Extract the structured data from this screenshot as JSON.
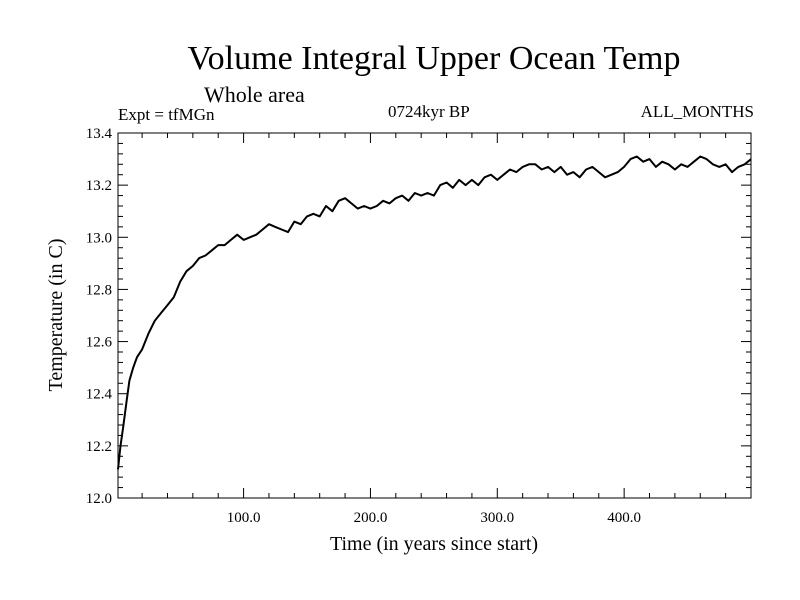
{
  "chart_data": {
    "type": "line",
    "title": "Volume Integral Upper Ocean Temp",
    "subtitle": "Whole area",
    "left_label": "Expt = tfMGn",
    "center_label": "0724kyr BP",
    "right_label": "ALL_MONTHS",
    "xlabel": "Time (in years since start)",
    "ylabel": "Temperature (in C)",
    "xlim": [
      1,
      500
    ],
    "ylim": [
      12.0,
      13.4
    ],
    "x_ticks": [
      100,
      200,
      300,
      400
    ],
    "x_tick_labels": [
      "100.0",
      "200.0",
      "300.0",
      "400.0"
    ],
    "y_ticks": [
      12.0,
      12.2,
      12.4,
      12.6,
      12.8,
      13.0,
      13.2,
      13.4
    ],
    "y_tick_labels": [
      "12.0",
      "12.2",
      "12.4",
      "12.6",
      "12.8",
      "13.0",
      "13.2",
      "13.4"
    ],
    "grid": false,
    "line_color": "#000000",
    "series": [
      {
        "x": [
          1,
          3,
          5,
          8,
          10,
          13,
          16,
          20,
          25,
          30,
          35,
          40,
          45,
          50,
          55,
          60,
          65,
          70,
          75,
          80,
          85,
          90,
          95,
          100,
          105,
          110,
          115,
          120,
          125,
          130,
          135,
          140,
          145,
          150,
          155,
          160,
          165,
          170,
          175,
          180,
          185,
          190,
          195,
          200,
          205,
          210,
          215,
          220,
          225,
          230,
          235,
          240,
          245,
          250,
          255,
          260,
          265,
          270,
          275,
          280,
          285,
          290,
          295,
          300,
          305,
          310,
          315,
          320,
          325,
          330,
          335,
          340,
          345,
          350,
          355,
          360,
          365,
          370,
          375,
          380,
          385,
          390,
          395,
          400,
          405,
          410,
          415,
          420,
          425,
          430,
          435,
          440,
          445,
          450,
          455,
          460,
          465,
          470,
          475,
          480,
          485,
          490,
          495,
          500
        ],
        "y": [
          12.11,
          12.2,
          12.27,
          12.38,
          12.45,
          12.5,
          12.54,
          12.57,
          12.63,
          12.68,
          12.71,
          12.74,
          12.77,
          12.83,
          12.87,
          12.89,
          12.92,
          12.93,
          12.95,
          12.97,
          12.97,
          12.99,
          13.01,
          12.99,
          13.0,
          13.01,
          13.03,
          13.05,
          13.04,
          13.03,
          13.02,
          13.06,
          13.05,
          13.08,
          13.09,
          13.08,
          13.12,
          13.1,
          13.14,
          13.15,
          13.13,
          13.11,
          13.12,
          13.11,
          13.12,
          13.14,
          13.13,
          13.15,
          13.16,
          13.14,
          13.17,
          13.16,
          13.17,
          13.16,
          13.2,
          13.21,
          13.19,
          13.22,
          13.2,
          13.22,
          13.2,
          13.23,
          13.24,
          13.22,
          13.24,
          13.26,
          13.25,
          13.27,
          13.28,
          13.28,
          13.26,
          13.27,
          13.25,
          13.27,
          13.24,
          13.25,
          13.23,
          13.26,
          13.27,
          13.25,
          13.23,
          13.24,
          13.25,
          13.27,
          13.3,
          13.31,
          13.29,
          13.3,
          13.27,
          13.29,
          13.28,
          13.26,
          13.28,
          13.27,
          13.29,
          13.31,
          13.3,
          13.28,
          13.27,
          13.28,
          13.25,
          13.27,
          13.28,
          13.3
        ]
      }
    ]
  }
}
